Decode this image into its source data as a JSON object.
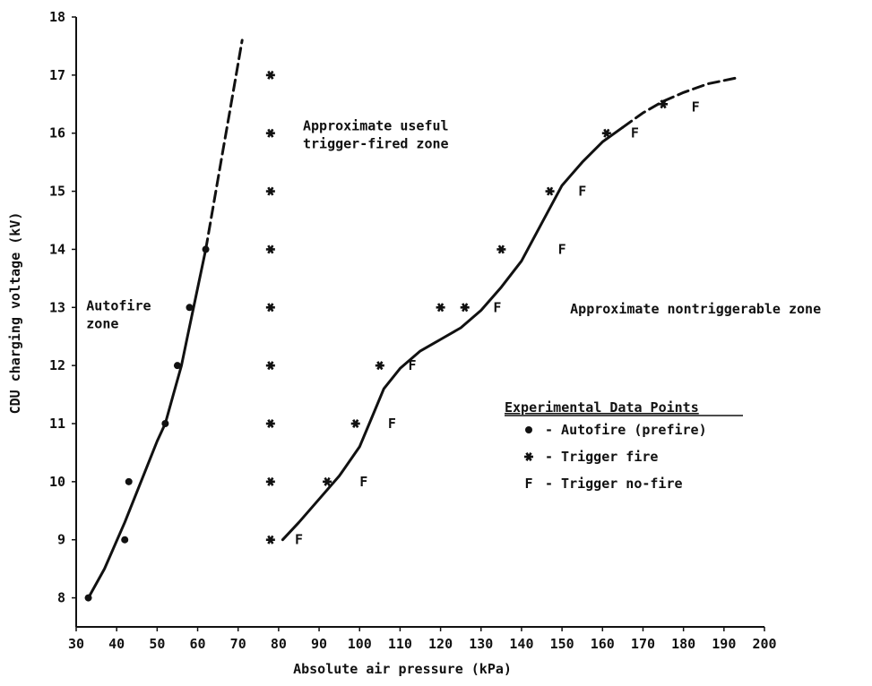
{
  "chart_data": {
    "type": "scatter",
    "xlabel": "Absolute air pressure (kPa)",
    "ylabel": "CDU charging voltage (kV)",
    "xlim": [
      30,
      200
    ],
    "ylim": [
      7.5,
      18
    ],
    "xticks": [
      30,
      40,
      50,
      60,
      70,
      80,
      90,
      100,
      110,
      120,
      130,
      140,
      150,
      160,
      170,
      180,
      190,
      200
    ],
    "yticks": [
      8,
      9,
      10,
      11,
      12,
      13,
      14,
      15,
      16,
      17,
      18
    ],
    "grid": false,
    "legend": {
      "title": "Experimental Data Points",
      "placement": "right",
      "entries": [
        {
          "symbol": "•",
          "label": "- Autofire (prefire)"
        },
        {
          "symbol": "*",
          "label": "- Trigger fire"
        },
        {
          "symbol": "F",
          "label": "- Trigger no-fire"
        }
      ]
    },
    "annotations": [
      {
        "lines": [
          "Autofire",
          "zone"
        ],
        "x": 32.5,
        "y": 12.95
      },
      {
        "lines": [
          "Approximate useful",
          "trigger-fired zone"
        ],
        "x": 86,
        "y": 16.05
      },
      {
        "lines": [
          "Approximate nontriggerable zone"
        ],
        "x": 152,
        "y": 12.9
      }
    ],
    "series": [
      {
        "name": "Autofire (prefire)",
        "marker": "dot",
        "x": [
          33,
          42,
          43,
          52,
          55,
          58,
          62
        ],
        "y": [
          8,
          9,
          10,
          11,
          12,
          13,
          14
        ]
      },
      {
        "name": "Trigger fire",
        "marker": "star",
        "x": [
          78,
          78,
          78,
          78,
          78,
          78,
          78,
          78,
          78,
          92,
          99,
          105,
          120,
          126,
          135,
          147,
          161,
          175
        ],
        "y": [
          9,
          10,
          11,
          12,
          13,
          14,
          15,
          16,
          17,
          10,
          11,
          12,
          13,
          13,
          14,
          15,
          16,
          16.5
        ]
      },
      {
        "name": "Trigger no-fire",
        "marker": "F",
        "x": [
          85,
          101,
          108,
          113,
          134,
          150,
          155,
          168,
          183
        ],
        "y": [
          9,
          10,
          11,
          12,
          13,
          14,
          15,
          16,
          16.45
        ]
      }
    ],
    "curves": [
      {
        "name": "autofire boundary",
        "solid": [
          [
            33,
            8
          ],
          [
            37,
            8.5
          ],
          [
            42,
            9.3
          ],
          [
            46,
            10
          ],
          [
            50,
            10.7
          ],
          [
            52,
            11
          ],
          [
            54,
            11.5
          ],
          [
            56,
            12
          ],
          [
            57.5,
            12.5
          ],
          [
            59,
            13
          ],
          [
            62,
            14
          ]
        ],
        "dashed": [
          [
            62,
            14
          ],
          [
            64,
            14.8
          ],
          [
            66,
            15.6
          ],
          [
            68,
            16.4
          ],
          [
            70,
            17.2
          ],
          [
            71,
            17.6
          ]
        ]
      },
      {
        "name": "trigger boundary",
        "solid": [
          [
            81,
            9
          ],
          [
            85,
            9.3
          ],
          [
            90,
            9.7
          ],
          [
            95,
            10.1
          ],
          [
            100,
            10.6
          ],
          [
            103,
            11.1
          ],
          [
            106,
            11.6
          ],
          [
            110,
            11.95
          ],
          [
            115,
            12.25
          ],
          [
            120,
            12.45
          ],
          [
            125,
            12.65
          ],
          [
            130,
            12.95
          ],
          [
            135,
            13.35
          ],
          [
            140,
            13.8
          ],
          [
            145,
            14.45
          ],
          [
            150,
            15.1
          ],
          [
            155,
            15.5
          ],
          [
            160,
            15.85
          ],
          [
            165,
            16.1
          ]
        ],
        "dashed": [
          [
            165,
            16.1
          ],
          [
            170,
            16.35
          ],
          [
            175,
            16.55
          ],
          [
            180,
            16.7
          ],
          [
            186,
            16.85
          ],
          [
            193,
            16.95
          ]
        ]
      }
    ]
  }
}
